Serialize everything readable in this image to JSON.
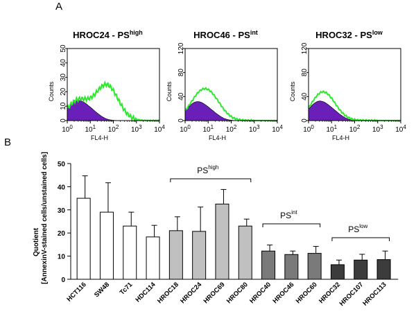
{
  "panel_a_label": "A",
  "panel_b_label": "B",
  "histograms": [
    {
      "title": "HROC24 - PS",
      "title_sup": "high",
      "ymax": 50,
      "yticks": [
        "0",
        "10",
        "20",
        "30",
        "40",
        "50"
      ],
      "ylabel": "Counts",
      "xlabel": "FL4-H",
      "unstained_peak_log": 0.45,
      "unstained_height": 14,
      "stained_peak_log": 1.7,
      "stained_height": 26
    },
    {
      "title": "HROC46 - PS",
      "title_sup": "int",
      "ymax": 120,
      "yticks": [
        "0",
        "40",
        "80",
        "120"
      ],
      "ylabel": "Counts",
      "xlabel": "FL4-H",
      "unstained_peak_log": 0.5,
      "unstained_height": 32,
      "stained_peak_log": 1.05,
      "stained_height": 42
    },
    {
      "title": "HROC32 - PS",
      "title_sup": "low",
      "ymax": 120,
      "yticks": [
        "0",
        "40",
        "80",
        "120"
      ],
      "ylabel": "Counts",
      "xlabel": "FL4-H",
      "unstained_peak_log": 0.45,
      "unstained_height": 33,
      "stained_peak_log": 0.75,
      "stained_height": 34
    }
  ],
  "x_tick_base": "10",
  "x_tick_exponents": [
    "0",
    "1",
    "2",
    "3",
    "4"
  ],
  "chart_data": {
    "type": "bar",
    "ylabel_line1": "Quotient",
    "ylabel_line2": "[AnnexinV-stained cells/unstained cells]",
    "ylim": [
      0,
      50
    ],
    "yticks": [
      "0",
      "10",
      "20",
      "30",
      "40",
      "50"
    ],
    "categories": [
      "HCT116",
      "SW48",
      "Tc71",
      "HDC114",
      "HROC18",
      "HROC24",
      "HROC69",
      "HROC80",
      "HROC40",
      "HROC46",
      "HROC60",
      "HROC32",
      "HROC107",
      "HROC113"
    ],
    "values": [
      35,
      29,
      23,
      18.3,
      21,
      20.7,
      32.5,
      23,
      12.2,
      10.7,
      11.2,
      6.3,
      8.3,
      8.5
    ],
    "errors": [
      9.7,
      12.7,
      6,
      5,
      6,
      10.5,
      6.3,
      3,
      2.6,
      1.5,
      3,
      2,
      2.5,
      3.7
    ],
    "groups": [
      {
        "label": "PS",
        "sup": "high",
        "start": 4,
        "end": 7,
        "color": "#c0c0c0"
      },
      {
        "label": "PS",
        "sup": "int",
        "start": 8,
        "end": 10,
        "color": "#7a7a7a"
      },
      {
        "label": "PS",
        "sup": "low",
        "start": 11,
        "end": 13,
        "color": "#3c3c3c"
      }
    ],
    "control_color": "#ffffff"
  }
}
